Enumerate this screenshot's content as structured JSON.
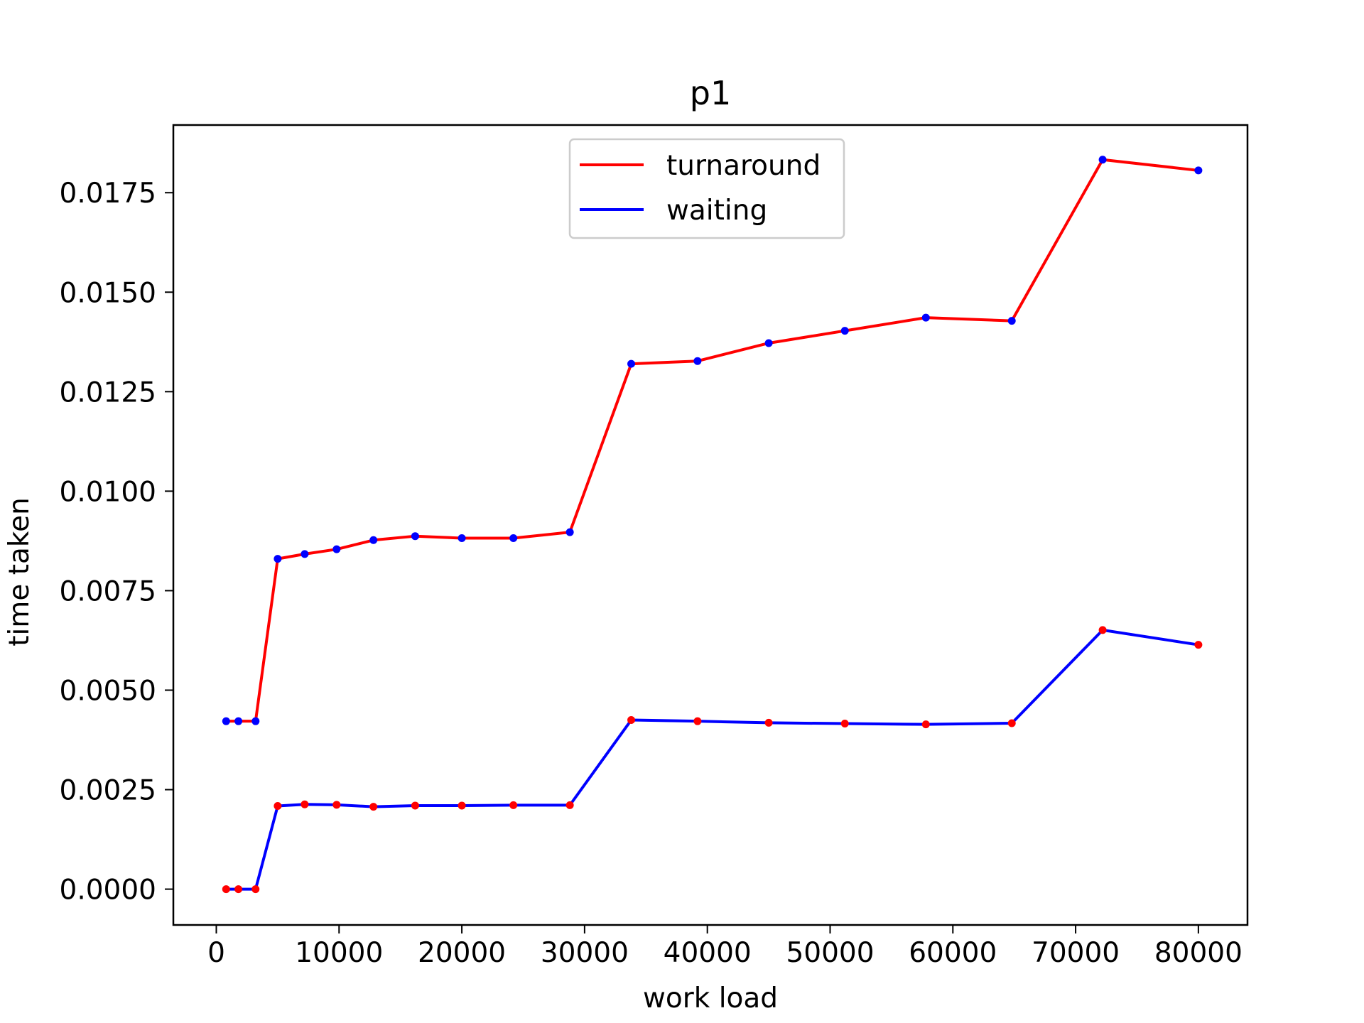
{
  "chart_data": {
    "type": "line",
    "title": "p1",
    "xlabel": "work load",
    "ylabel": "time taken",
    "xlim": [
      -3500,
      84000
    ],
    "ylim": [
      -0.0009,
      0.0192
    ],
    "xticks": [
      0,
      10000,
      20000,
      30000,
      40000,
      50000,
      60000,
      70000,
      80000
    ],
    "xtick_labels": [
      "0",
      "10000",
      "20000",
      "30000",
      "40000",
      "50000",
      "60000",
      "70000",
      "80000"
    ],
    "yticks": [
      0.0,
      0.0025,
      0.005,
      0.0075,
      0.01,
      0.0125,
      0.015,
      0.0175
    ],
    "ytick_labels": [
      "0.0000",
      "0.0025",
      "0.0050",
      "0.0075",
      "0.0100",
      "0.0125",
      "0.0150",
      "0.0175"
    ],
    "grid": false,
    "legend_position": "upper center",
    "x": [
      800,
      1800,
      3200,
      5000,
      7200,
      9800,
      12800,
      16200,
      20000,
      24200,
      28800,
      33800,
      39200,
      45000,
      51200,
      57800,
      64800,
      72200,
      80000
    ],
    "series": [
      {
        "name": "turnaround",
        "color": "#ff0000",
        "marker_color": "#0000ff",
        "values": [
          0.00422,
          0.00422,
          0.00422,
          0.0083,
          0.00842,
          0.00854,
          0.00877,
          0.00887,
          0.00882,
          0.00882,
          0.00897,
          0.0132,
          0.01327,
          0.01372,
          0.01403,
          0.01436,
          0.01428,
          0.01833,
          0.01806
        ]
      },
      {
        "name": "waiting",
        "color": "#0000ff",
        "marker_color": "#ff0000",
        "values": [
          0.0,
          0.0,
          0.0,
          0.00209,
          0.00213,
          0.00212,
          0.00207,
          0.0021,
          0.0021,
          0.00211,
          0.00211,
          0.00425,
          0.00422,
          0.00418,
          0.00416,
          0.00414,
          0.00417,
          0.00651,
          0.00614
        ]
      }
    ]
  }
}
